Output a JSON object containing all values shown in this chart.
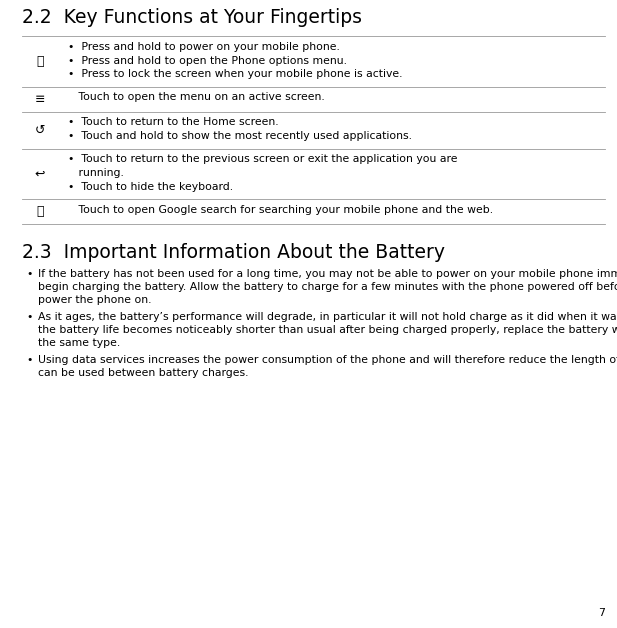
{
  "section1_title": "2.2  Key Functions at Your Fingertips",
  "section2_title": "2.3  Important Information About the Battery",
  "page_number": "7",
  "bg_color": "#ffffff",
  "text_color": "#000000",
  "title1_fontsize": 13.5,
  "title2_fontsize": 13.5,
  "body_fontsize": 7.8,
  "icon_fontsize": 9,
  "line_color": "#999999",
  "table_rows": [
    {
      "icon": "ⓘ",
      "icon_use": "circle_i",
      "bullets": [
        "•  Press and hold to power on your mobile phone.",
        "•  Press and hold to open the Phone options menu.",
        "•  Press to lock the screen when your mobile phone is active."
      ]
    },
    {
      "icon": "≡",
      "icon_use": "menu",
      "bullets": [
        "   Touch to open the menu on an active screen."
      ]
    },
    {
      "icon": "↺",
      "icon_use": "home",
      "bullets": [
        "•  Touch to return to the Home screen.",
        "•  Touch and hold to show the most recently used applications."
      ]
    },
    {
      "icon": "↩",
      "icon_use": "back",
      "bullets": [
        "•  Touch to return to the previous screen or exit the application you are running.",
        "•  Touch to hide the keyboard."
      ]
    },
    {
      "icon": "🔍",
      "icon_use": "search",
      "bullets": [
        "   Touch to open Google search for searching your mobile phone and the web."
      ]
    }
  ],
  "battery_bullets": [
    "If the battery has not been used for a long time, you may not be able to power on your mobile phone immediately after you begin charging the battery. Allow the battery to charge for a few minutes with the phone powered off before attempting to power the phone on.",
    "As it ages, the battery’s performance will degrade, in particular it will not hold charge as it did when it was new. When the battery life becomes noticeably shorter than usual after being charged properly, replace the battery with a new one of the same type.",
    "Using data services increases the power consumption of the phone and will therefore reduce the length of time that the phone can be used between battery charges."
  ]
}
